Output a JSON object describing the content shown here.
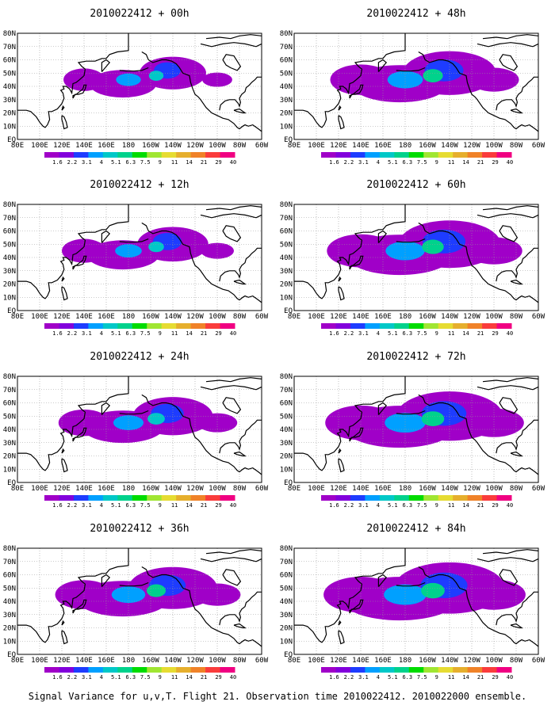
{
  "colorbar": {
    "labels": [
      "1.6",
      "2.2",
      "3.1",
      "4",
      "5.1",
      "6.3",
      "7.5",
      "9",
      "11",
      "14",
      "21",
      "29",
      "40"
    ],
    "colors": [
      "#a000c8",
      "#8200dc",
      "#1e3cff",
      "#00a0ff",
      "#00c8c8",
      "#00d28c",
      "#00dc00",
      "#a0e632",
      "#e6dc32",
      "#e6af2d",
      "#f08228",
      "#fa3c3c",
      "#f00082"
    ]
  },
  "axes": {
    "lat_labels": [
      "80N",
      "70N",
      "60N",
      "50N",
      "40N",
      "30N",
      "20N",
      "10N",
      "EQ"
    ],
    "lon_labels": [
      "80E",
      "100E",
      "120E",
      "140E",
      "160E",
      "180",
      "160W",
      "140W",
      "120W",
      "100W",
      "80W",
      "60W"
    ]
  },
  "panels": [
    {
      "title": "2010022412 + 00h",
      "intensity": 0.35,
      "coverage": 0.45
    },
    {
      "title": "2010022412 + 48h",
      "intensity": 0.55,
      "coverage": 0.75
    },
    {
      "title": "2010022412 + 12h",
      "intensity": 0.4,
      "coverage": 0.5
    },
    {
      "title": "2010022412 + 60h",
      "intensity": 0.6,
      "coverage": 0.85
    },
    {
      "title": "2010022412 + 24h",
      "intensity": 0.45,
      "coverage": 0.6
    },
    {
      "title": "2010022412 + 72h",
      "intensity": 0.7,
      "coverage": 0.9
    },
    {
      "title": "2010022412 + 36h",
      "intensity": 0.5,
      "coverage": 0.7
    },
    {
      "title": "2010022412 + 84h",
      "intensity": 0.75,
      "coverage": 0.95
    }
  ],
  "caption": "Signal Variance for u,v,T. Flight 21. Observation time 2010022412. 2010022000 ensemble."
}
